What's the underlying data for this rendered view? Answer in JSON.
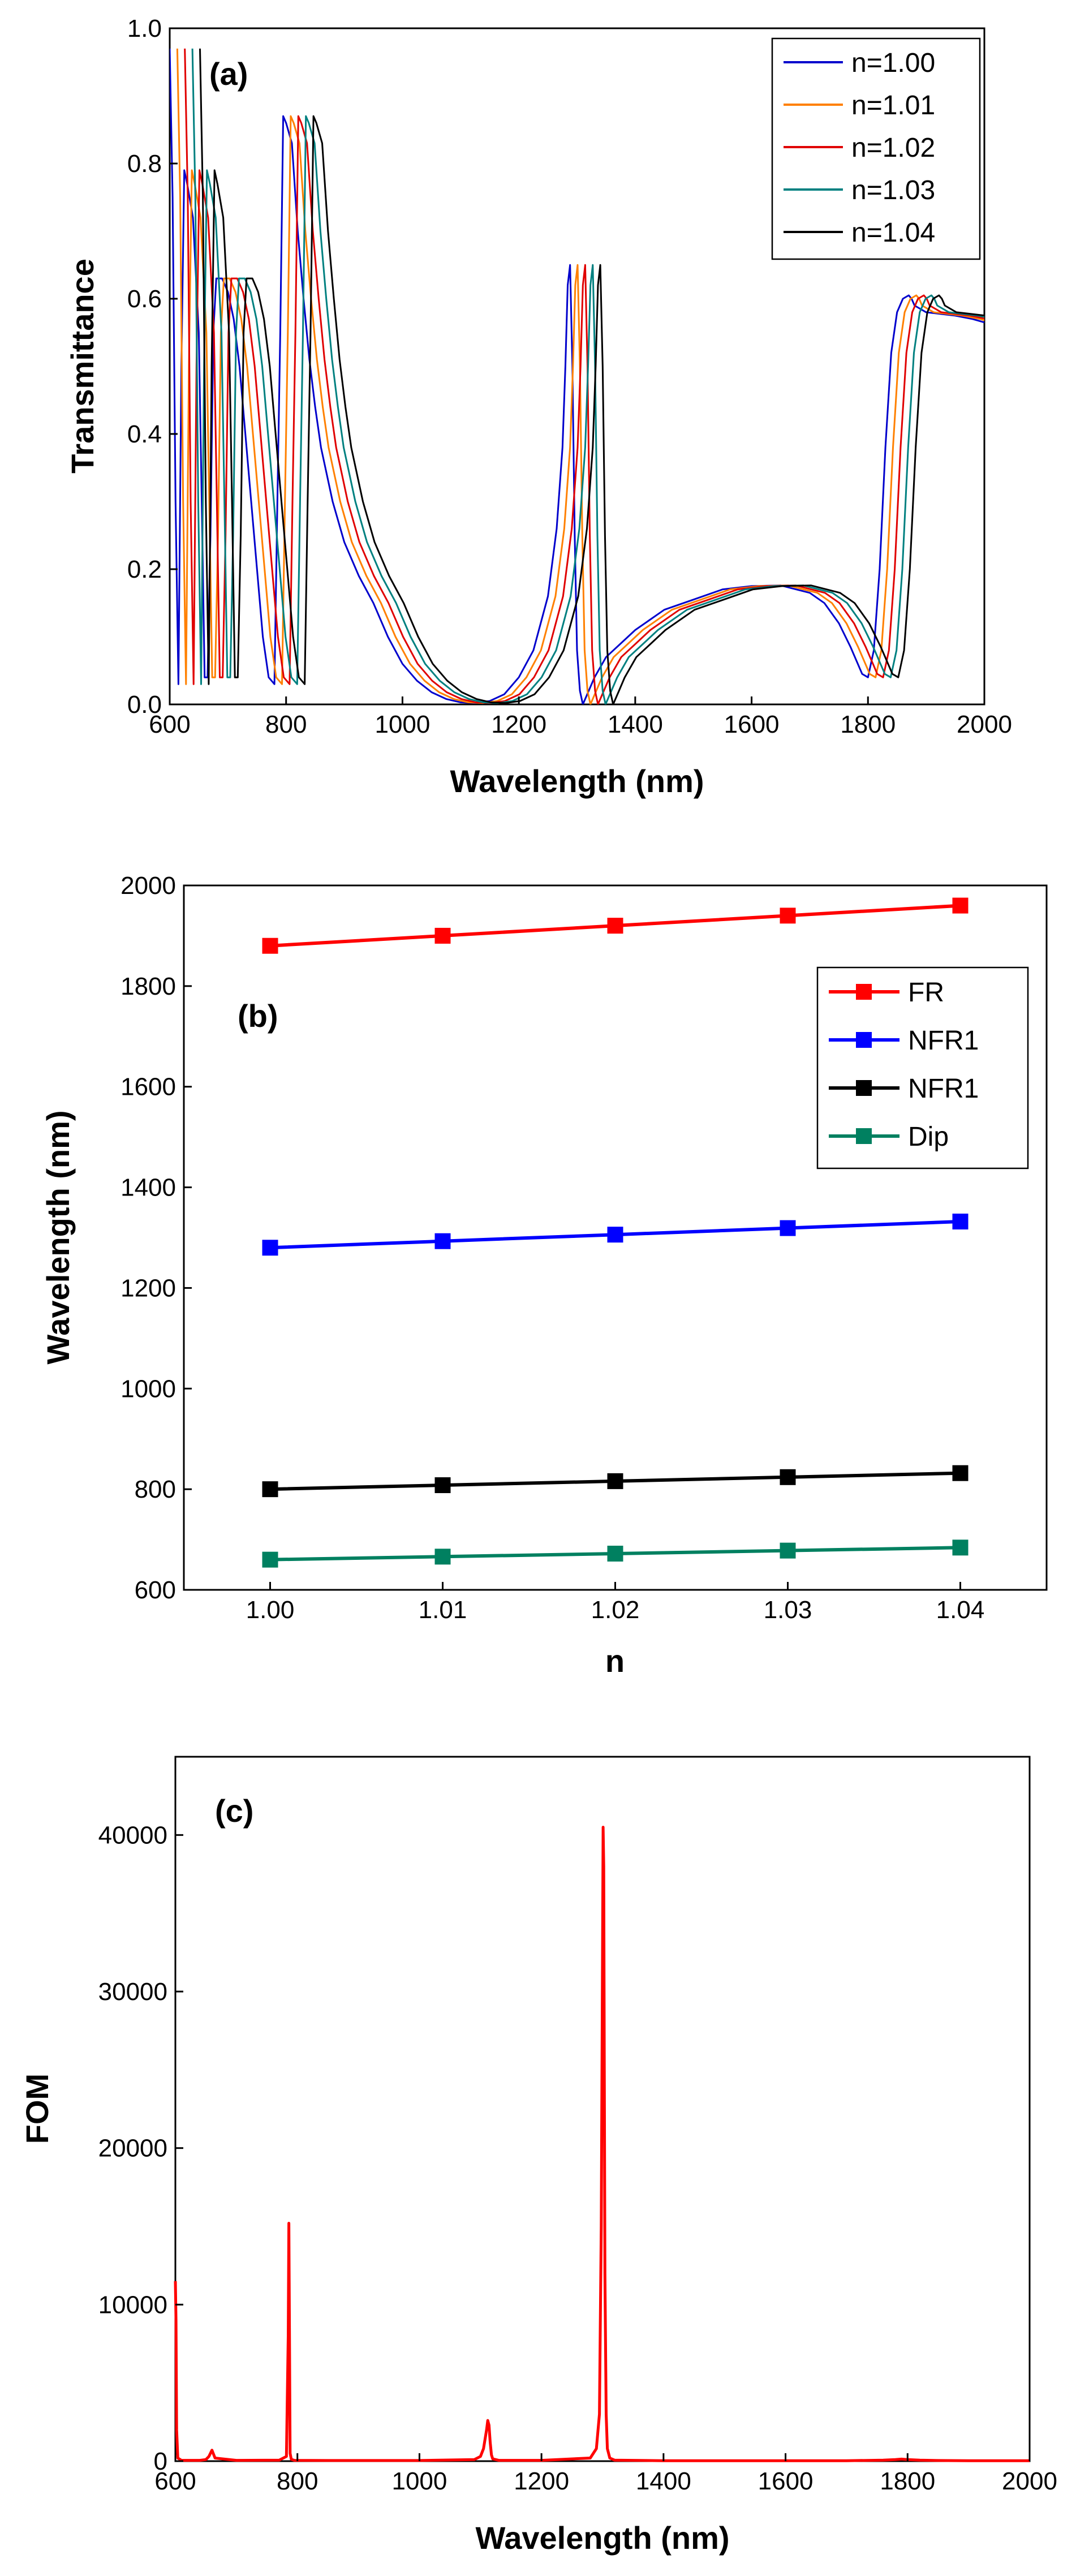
{
  "chart_data": [
    {
      "panel": "(a)",
      "type": "line",
      "title": "",
      "xlabel": "Wavelength (nm)",
      "ylabel": "Transmittance",
      "xlim": [
        600,
        2000
      ],
      "ylim": [
        0.0,
        1.0
      ],
      "xticks": [
        600,
        800,
        1000,
        1200,
        1400,
        1600,
        1800,
        2000
      ],
      "yticks": [
        0.0,
        0.2,
        0.4,
        0.6,
        0.8,
        1.0
      ],
      "ytick_labels": [
        "0.0",
        "0.2",
        "0.4",
        "0.6",
        "0.8",
        "1.0"
      ],
      "legend_position": "top-right",
      "base_series": {
        "x": [
          600,
          605,
          610,
          615,
          620,
          625,
          630,
          640,
          650,
          655,
          660,
          665,
          670,
          675,
          680,
          690,
          700,
          710,
          720,
          730,
          740,
          750,
          760,
          770,
          780,
          785,
          790,
          795,
          800,
          810,
          820,
          830,
          840,
          850,
          860,
          870,
          880,
          900,
          925,
          950,
          975,
          1000,
          1025,
          1050,
          1075,
          1100,
          1125,
          1150,
          1175,
          1200,
          1225,
          1250,
          1265,
          1275,
          1280,
          1284,
          1288,
          1292,
          1296,
          1300,
          1305,
          1310,
          1320,
          1330,
          1350,
          1375,
          1400,
          1450,
          1500,
          1550,
          1600,
          1650,
          1700,
          1725,
          1750,
          1770,
          1780,
          1790,
          1800,
          1810,
          1820,
          1830,
          1840,
          1850,
          1860,
          1870,
          1875,
          1880,
          1900,
          1920,
          1950,
          1980,
          2000
        ],
        "y": [
          0.97,
          0.75,
          0.3,
          0.03,
          0.5,
          0.79,
          0.77,
          0.72,
          0.55,
          0.3,
          0.04,
          0.04,
          0.25,
          0.55,
          0.63,
          0.63,
          0.61,
          0.57,
          0.5,
          0.4,
          0.3,
          0.2,
          0.1,
          0.04,
          0.03,
          0.3,
          0.55,
          0.87,
          0.86,
          0.83,
          0.7,
          0.6,
          0.51,
          0.44,
          0.38,
          0.34,
          0.3,
          0.24,
          0.19,
          0.15,
          0.1,
          0.06,
          0.035,
          0.018,
          0.008,
          0.003,
          0.002,
          0.005,
          0.015,
          0.04,
          0.08,
          0.16,
          0.26,
          0.38,
          0.5,
          0.62,
          0.65,
          0.5,
          0.25,
          0.08,
          0.02,
          0.0,
          0.02,
          0.04,
          0.07,
          0.09,
          0.11,
          0.14,
          0.155,
          0.17,
          0.175,
          0.176,
          0.165,
          0.15,
          0.12,
          0.085,
          0.065,
          0.045,
          0.04,
          0.08,
          0.2,
          0.38,
          0.52,
          0.58,
          0.6,
          0.605,
          0.6,
          0.59,
          0.58,
          0.578,
          0.575,
          0.57,
          0.565
        ]
      },
      "series": [
        {
          "name": "n=1.00",
          "color": "#0000cc",
          "wavelength_shift_nm": 0
        },
        {
          "name": "n=1.01",
          "color": "#ff8000",
          "wavelength_shift_nm": 13
        },
        {
          "name": "n=1.02",
          "color": "#e00000",
          "wavelength_shift_nm": 26
        },
        {
          "name": "n=1.03",
          "color": "#008080",
          "wavelength_shift_nm": 39
        },
        {
          "name": "n=1.04",
          "color": "#000000",
          "wavelength_shift_nm": 52
        }
      ]
    },
    {
      "panel": "(b)",
      "type": "line",
      "title": "",
      "xlabel": "n",
      "ylabel": "Wavelength (nm)",
      "xlim": [
        0.995,
        1.045
      ],
      "ylim": [
        600,
        2000
      ],
      "xticks": [
        1.0,
        1.01,
        1.02,
        1.03,
        1.04
      ],
      "xtick_labels": [
        "1.00",
        "1.01",
        "1.02",
        "1.03",
        "1.04"
      ],
      "yticks": [
        600,
        800,
        1000,
        1200,
        1400,
        1600,
        1800,
        2000
      ],
      "legend_position": "right",
      "x": [
        1.0,
        1.01,
        1.02,
        1.03,
        1.04
      ],
      "series": [
        {
          "name": "FR",
          "color": "#ff0000",
          "values": [
            1880,
            1900,
            1920,
            1940,
            1960
          ]
        },
        {
          "name": "NFR1",
          "color": "#0000ff",
          "values": [
            1280,
            1293,
            1306,
            1319,
            1332
          ]
        },
        {
          "name": "NFR1",
          "color": "#000000",
          "values": [
            800,
            808,
            816,
            824,
            832
          ]
        },
        {
          "name": "Dip",
          "color": "#008060",
          "values": [
            660,
            666,
            672,
            678,
            684
          ]
        }
      ]
    },
    {
      "panel": "(c)",
      "type": "line",
      "title": "",
      "xlabel": "Wavelength (nm)",
      "ylabel": "FOM",
      "xlim": [
        600,
        2000
      ],
      "ylim": [
        0,
        45000
      ],
      "xticks": [
        600,
        800,
        1000,
        1200,
        1400,
        1600,
        1800,
        2000
      ],
      "yticks": [
        0,
        10000,
        20000,
        30000,
        40000
      ],
      "series": [
        {
          "name": "FOM",
          "color": "#ff0000",
          "x": [
            600,
            601,
            602,
            604,
            610,
            640,
            650,
            655,
            660,
            665,
            700,
            770,
            782,
            785,
            786,
            787,
            788,
            790,
            795,
            850,
            1000,
            1090,
            1100,
            1105,
            1110,
            1112,
            1114,
            1116,
            1118,
            1120,
            1130,
            1200,
            1280,
            1290,
            1295,
            1298,
            1300,
            1301,
            1302,
            1303,
            1304,
            1306,
            1308,
            1312,
            1320,
            1400,
            1700,
            1760,
            1780,
            1790,
            1800,
            1820,
            1850,
            1900,
            2000
          ],
          "y": [
            11500,
            9000,
            2000,
            200,
            50,
            50,
            100,
            300,
            700,
            200,
            50,
            60,
            300,
            8000,
            15200,
            8000,
            500,
            120,
            50,
            40,
            40,
            100,
            300,
            800,
            2000,
            2600,
            2300,
            1200,
            400,
            150,
            50,
            50,
            200,
            800,
            3000,
            15000,
            32000,
            40500,
            38000,
            25000,
            12000,
            3000,
            800,
            200,
            60,
            30,
            30,
            60,
            100,
            130,
            100,
            60,
            40,
            30,
            30
          ]
        }
      ]
    }
  ]
}
